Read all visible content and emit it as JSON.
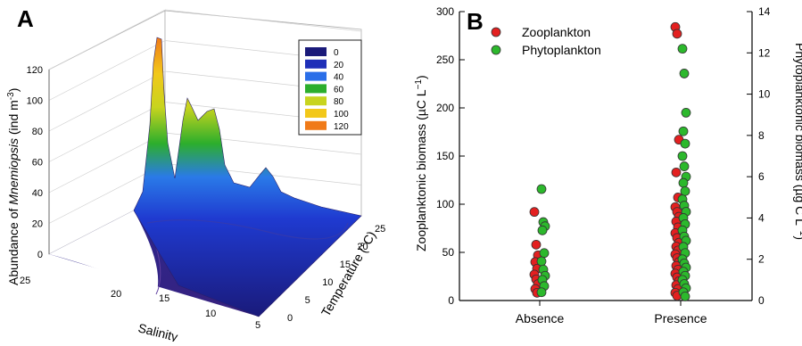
{
  "panels": {
    "a": {
      "letter": "A"
    },
    "b": {
      "letter": "B"
    }
  },
  "chart_data": [
    {
      "panel": "A",
      "type": "surface",
      "ylabel_pre": "Abundance of ",
      "ylabel_italic": "Mnemiopsis",
      "ylabel_post": " (ind m",
      "ylabel_exp": "-3",
      "ylabel_close": ")",
      "xlabel": "Salinity",
      "depth_label": "Temperature (°C)",
      "z_ticks": [
        0,
        20,
        40,
        60,
        80,
        100,
        120
      ],
      "salinity_ticks": [
        25,
        20,
        15,
        10,
        5
      ],
      "temperature_ticks": [
        0,
        5,
        10,
        15,
        20,
        25
      ],
      "zlim": [
        0,
        120
      ],
      "legend": [
        {
          "label": "0",
          "color": "#1a1a7a"
        },
        {
          "label": "20",
          "color": "#1f2fb8"
        },
        {
          "label": "40",
          "color": "#2a6ee8"
        },
        {
          "label": "60",
          "color": "#2cae2c"
        },
        {
          "label": "80",
          "color": "#c8d41e"
        },
        {
          "label": "100",
          "color": "#f2c81a"
        },
        {
          "label": "120",
          "color": "#f07a18"
        }
      ],
      "peaks": [
        {
          "salinity": 22,
          "temperature": 23,
          "abundance": 120
        },
        {
          "salinity": 19,
          "temperature": 21,
          "abundance": 90
        },
        {
          "salinity": 16,
          "temperature": 20,
          "abundance": 88
        },
        {
          "salinity": 11,
          "temperature": 21,
          "abundance": 50
        }
      ]
    },
    {
      "panel": "B",
      "type": "scatter",
      "categories": [
        "Absence",
        "Presence"
      ],
      "ylabel": "Zooplanktonic biomass (µC L",
      "ylabel_exp": "−1",
      "ylabel_close": ")",
      "y2label": "Phytoplanktonic biomass (µg C L",
      "y2label_exp": "−1",
      "y2label_close": ")",
      "ylim": [
        0,
        300
      ],
      "y2lim": [
        0,
        14
      ],
      "y_ticks": [
        0,
        50,
        100,
        150,
        200,
        250,
        300
      ],
      "y2_ticks": [
        0,
        2,
        4,
        6,
        8,
        10,
        12,
        14
      ],
      "series": [
        {
          "name": "Zooplankton",
          "color": "#e32020",
          "axis": "left",
          "points": {
            "Absence": [
              92,
              58,
              47,
              40,
              33,
              27,
              22,
              17,
              12,
              8
            ],
            "Presence": [
              284,
              277,
              167,
              133,
              107,
              97,
              92,
              87,
              82,
              76,
              70,
              65,
              60,
              56,
              52,
              48,
              44,
              40,
              36,
              32,
              28,
              24,
              20,
              16,
              12,
              8,
              5
            ]
          }
        },
        {
          "name": "Phytoplankton",
          "color": "#2cb82c",
          "axis": "right",
          "points": {
            "Absence": [
              5.4,
              3.8,
              3.6,
              3.4,
              2.3,
              1.9,
              1.5,
              1.2,
              1.0,
              0.7,
              0.4
            ],
            "Presence": [
              12.2,
              11.0,
              9.1,
              8.2,
              7.6,
              7.0,
              6.5,
              6.0,
              5.7,
              5.3,
              4.9,
              4.6,
              4.3,
              4.0,
              3.7,
              3.4,
              3.1,
              2.9,
              2.6,
              2.3,
              2.0,
              1.8,
              1.6,
              1.4,
              1.2,
              1.0,
              0.8,
              0.6,
              0.4,
              0.2
            ]
          }
        }
      ]
    }
  ]
}
